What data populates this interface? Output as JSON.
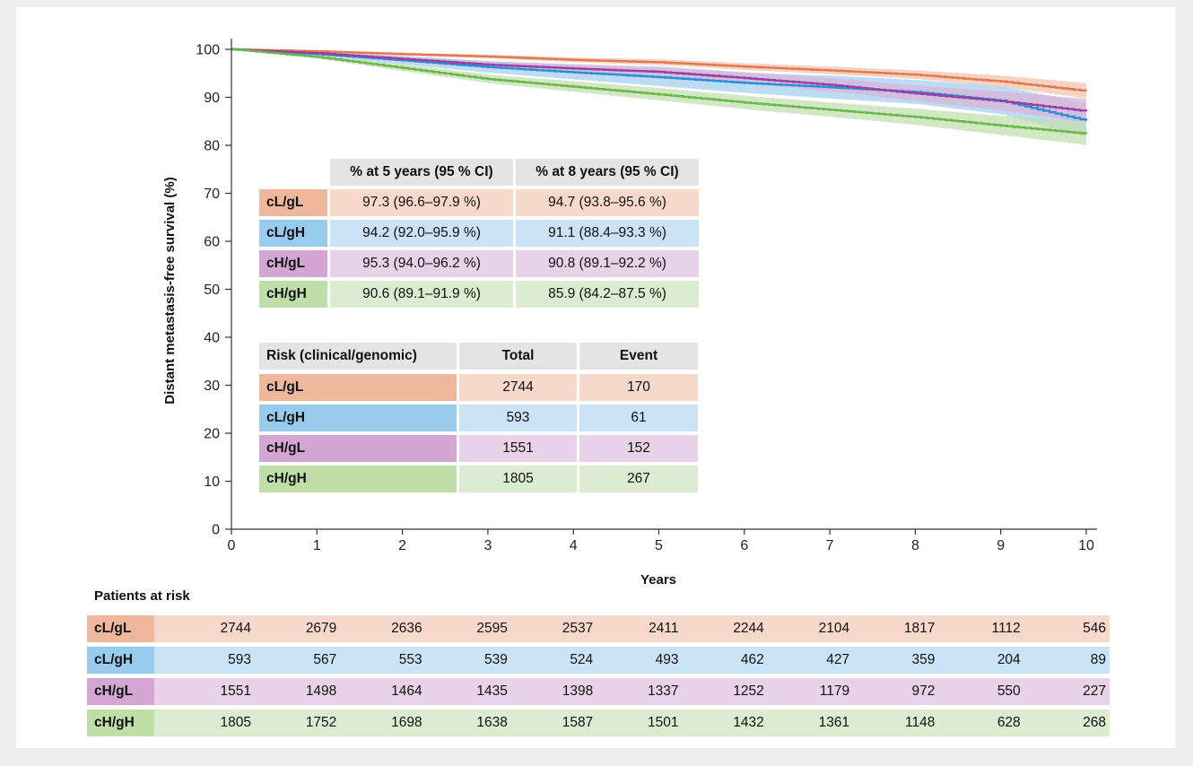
{
  "chart_data": {
    "type": "line",
    "xlabel": "Years",
    "ylabel": "Distant metastasis-free survival (%)",
    "xlim": [
      0,
      10
    ],
    "ylim": [
      0,
      100
    ],
    "xticks": [
      0,
      1,
      2,
      3,
      4,
      5,
      6,
      7,
      8,
      9,
      10
    ],
    "yticks": [
      0,
      10,
      20,
      30,
      40,
      50,
      60,
      70,
      80,
      90,
      100
    ],
    "series": [
      {
        "name": "cL/gL",
        "color": "#e07a50",
        "band_color": "#f2c4ad",
        "points": [
          [
            0,
            100
          ],
          [
            1,
            99.6
          ],
          [
            2,
            99.0
          ],
          [
            3,
            98.5
          ],
          [
            4,
            97.8
          ],
          [
            5,
            97.3
          ],
          [
            6,
            96.4
          ],
          [
            7,
            95.6
          ],
          [
            8,
            94.7
          ],
          [
            9,
            93.3
          ],
          [
            10,
            91.3
          ]
        ],
        "ci_width": [
          0,
          0.2,
          0.3,
          0.4,
          0.5,
          0.6,
          0.7,
          0.8,
          0.9,
          1.2,
          1.6
        ]
      },
      {
        "name": "cL/gH",
        "color": "#2a8fd4",
        "band_color": "#a7cfee",
        "points": [
          [
            0,
            100
          ],
          [
            1,
            99.0
          ],
          [
            2,
            97.7
          ],
          [
            3,
            96.3
          ],
          [
            4,
            95.2
          ],
          [
            5,
            94.2
          ],
          [
            6,
            93.0
          ],
          [
            7,
            92.1
          ],
          [
            8,
            91.1
          ],
          [
            9,
            89.3
          ],
          [
            10,
            85.1
          ]
        ],
        "ci_width": [
          0,
          0.5,
          0.9,
          1.2,
          1.5,
          1.9,
          2.1,
          2.4,
          2.5,
          2.9,
          3.6
        ]
      },
      {
        "name": "cH/gL",
        "color": "#9b3fa0",
        "band_color": "#d9b5da",
        "points": [
          [
            0,
            100
          ],
          [
            1,
            99.2
          ],
          [
            2,
            98.0
          ],
          [
            3,
            96.8
          ],
          [
            4,
            96.0
          ],
          [
            5,
            95.3
          ],
          [
            6,
            94.0
          ],
          [
            7,
            92.6
          ],
          [
            8,
            90.8
          ],
          [
            9,
            89.2
          ],
          [
            10,
            87.1
          ]
        ],
        "ci_width": [
          0,
          0.3,
          0.5,
          0.7,
          0.9,
          1.1,
          1.2,
          1.4,
          1.6,
          2.0,
          2.5
        ]
      },
      {
        "name": "cH/gH",
        "color": "#6ab84a",
        "band_color": "#c3dfb0",
        "points": [
          [
            0,
            100
          ],
          [
            1,
            98.4
          ],
          [
            2,
            96.1
          ],
          [
            3,
            93.8
          ],
          [
            4,
            92.2
          ],
          [
            5,
            90.6
          ],
          [
            6,
            88.9
          ],
          [
            7,
            87.4
          ],
          [
            8,
            85.9
          ],
          [
            9,
            84.1
          ],
          [
            10,
            82.4
          ]
        ],
        "ci_width": [
          0,
          0.4,
          0.7,
          0.9,
          1.1,
          1.3,
          1.4,
          1.5,
          1.7,
          2.0,
          2.4
        ]
      }
    ]
  },
  "ci_table": {
    "headers": [
      "% at 5 years (95 % CI)",
      "% at 8 years (95 % CI)"
    ],
    "rows": [
      {
        "label": "cL/gL",
        "y5": "97.3 (96.6–97.9 %)",
        "y8": "94.7 (93.8–95.6 %)",
        "dark": "#efb89c",
        "light": "#f7d9cb"
      },
      {
        "label": "cL/gH",
        "y5": "94.2 (92.0–95.9 %)",
        "y8": "91.1 (88.4–93.3 %)",
        "dark": "#98ccee",
        "light": "#cae3f5"
      },
      {
        "label": "cH/gL",
        "y5": "95.3 (94.0–96.2 %)",
        "y8": "90.8 (89.1–92.2 %)",
        "dark": "#d4a6d3",
        "light": "#e8d2e7"
      },
      {
        "label": "cH/gH",
        "y5": "90.6 (89.1–91.9 %)",
        "y8": "85.9 (84.2–87.5 %)",
        "dark": "#c0dea8",
        "light": "#dcecd0"
      }
    ]
  },
  "events_table": {
    "headers": [
      "Risk (clinical/genomic)",
      "Total",
      "Event"
    ],
    "rows": [
      {
        "label": "cL/gL",
        "total": "2744",
        "event": "170"
      },
      {
        "label": "cL/gH",
        "total": "593",
        "event": "61"
      },
      {
        "label": "cH/gL",
        "total": "1551",
        "event": "152"
      },
      {
        "label": "cH/gH",
        "total": "1805",
        "event": "267"
      }
    ]
  },
  "at_risk": {
    "title": "Patients at risk",
    "rows": [
      {
        "label": "cL/gL",
        "values": [
          "2744",
          "2679",
          "2636",
          "2595",
          "2537",
          "2411",
          "2244",
          "2104",
          "1817",
          "1112",
          "546"
        ]
      },
      {
        "label": "cL/gH",
        "values": [
          "593",
          "567",
          "553",
          "539",
          "524",
          "493",
          "462",
          "427",
          "359",
          "204",
          "89"
        ]
      },
      {
        "label": "cH/gL",
        "values": [
          "1551",
          "1498",
          "1464",
          "1435",
          "1398",
          "1337",
          "1252",
          "1179",
          "972",
          "550",
          "227"
        ]
      },
      {
        "label": "cH/gH",
        "values": [
          "1805",
          "1752",
          "1698",
          "1638",
          "1587",
          "1501",
          "1432",
          "1361",
          "1148",
          "628",
          "268"
        ]
      }
    ]
  }
}
